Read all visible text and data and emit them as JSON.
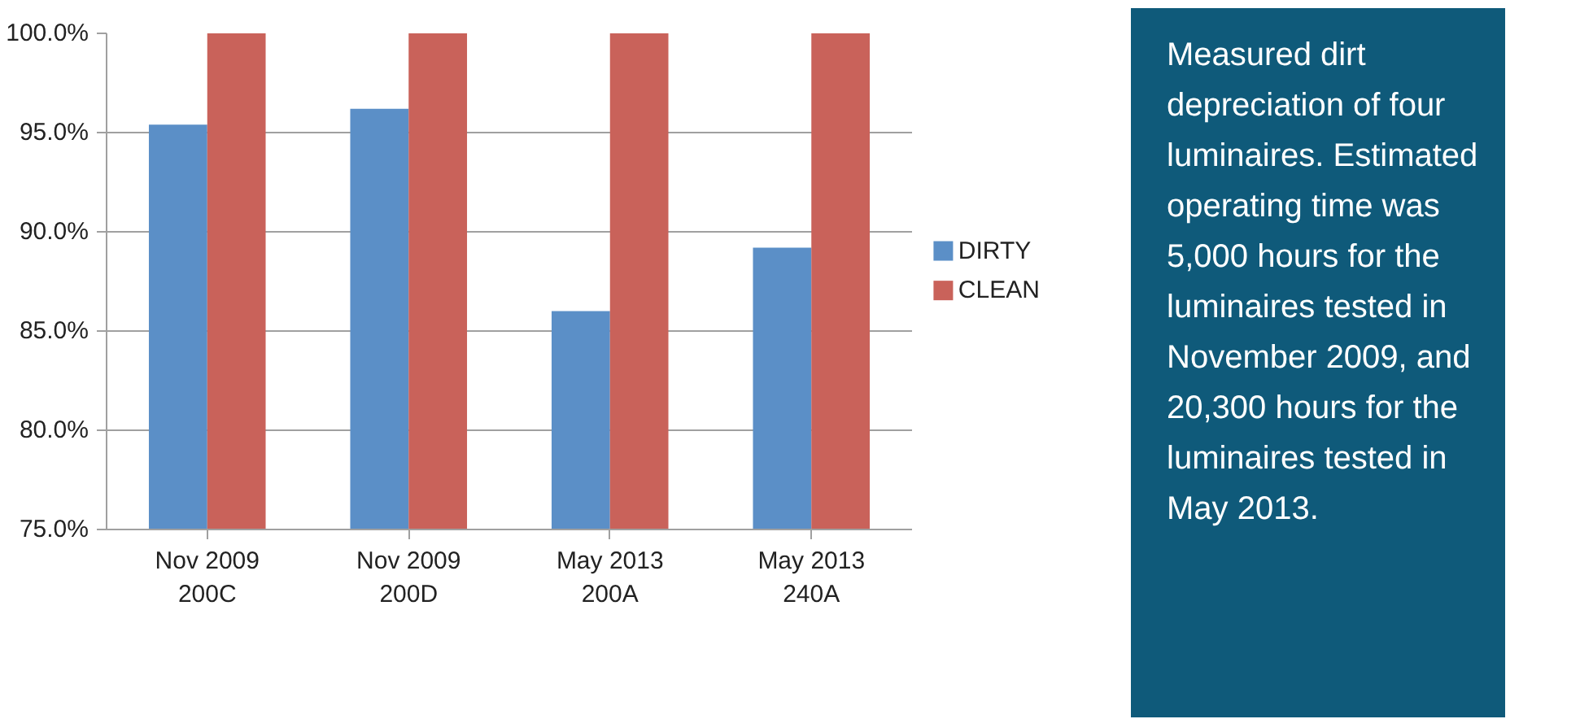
{
  "chart_data": {
    "type": "bar",
    "categories": [
      "Nov 2009\n200C",
      "Nov 2009\n200D",
      "May 2013\n200A",
      "May 2013\n240A"
    ],
    "series": [
      {
        "name": "DIRTY",
        "color": "#5b8fc7",
        "values": [
          95.4,
          96.2,
          86.0,
          89.2
        ]
      },
      {
        "name": "CLEAN",
        "color": "#c9625a",
        "values": [
          100.0,
          100.0,
          100.0,
          100.0
        ]
      }
    ],
    "ylim": [
      75,
      100
    ],
    "yticks": [
      {
        "value": 75,
        "label": "75.0%"
      },
      {
        "value": 80,
        "label": "80.0%"
      },
      {
        "value": 85,
        "label": "85.0%"
      },
      {
        "value": 90,
        "label": "90.0%"
      },
      {
        "value": 95,
        "label": "95.0%"
      },
      {
        "value": 100,
        "label": "100.0%"
      }
    ],
    "grid": "y",
    "legend": "right",
    "annotations": [
      "Measured dirt depreciation of four luminaires. Estimated operating time was 5,000 hours for the luminaires tested in November 2009, and 20,300 hours for the luminaires tested in May 2013."
    ]
  }
}
